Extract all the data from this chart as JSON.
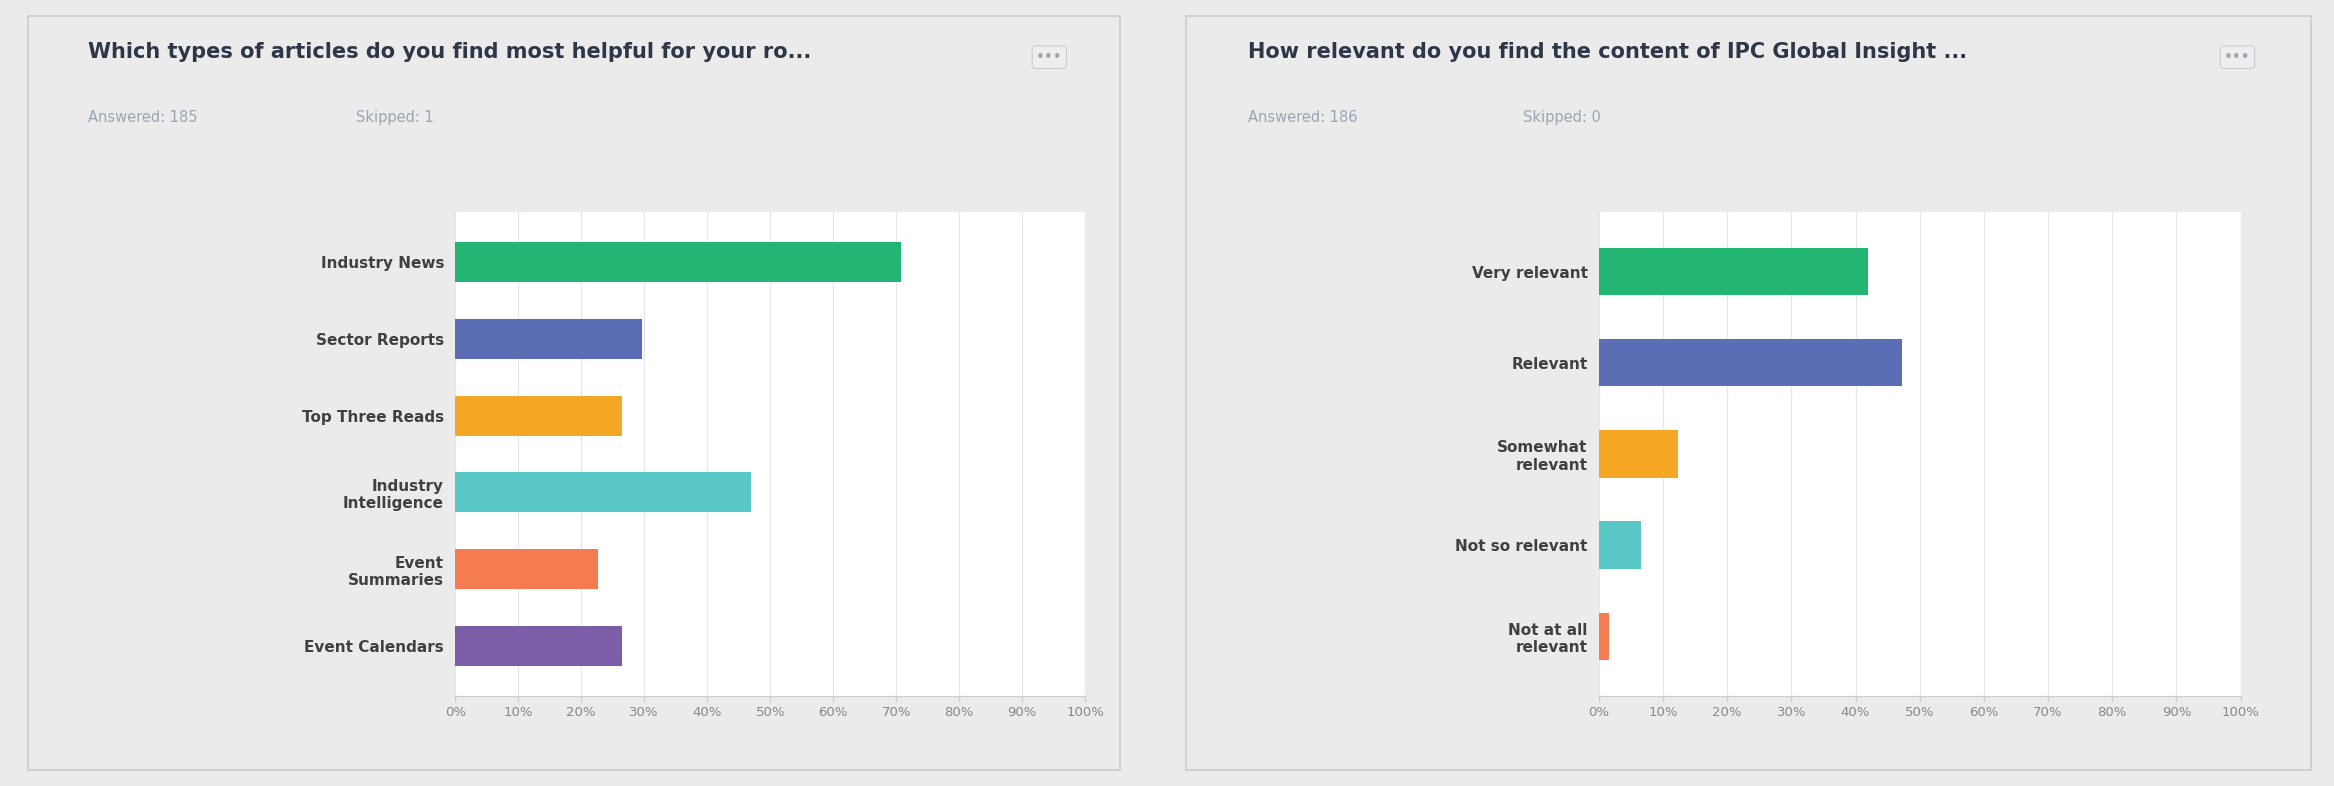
{
  "chart1": {
    "title": "Which types of articles do you find most helpful for your ro...",
    "answered": "Answered: 185",
    "skipped": "Skipped: 1",
    "categories": [
      "Industry News",
      "Sector Reports",
      "Top Three Reads",
      "Industry\nIntelligence",
      "Event\nSummaries",
      "Event Calendars"
    ],
    "values": [
      70.8,
      29.7,
      26.5,
      47.0,
      22.7,
      26.5
    ],
    "colors": [
      "#22b573",
      "#5b6eb5",
      "#f5a623",
      "#5bc8c8",
      "#f47c50",
      "#7b5ea7"
    ]
  },
  "chart2": {
    "title": "How relevant do you find the content of IPC Global Insight ...",
    "answered": "Answered: 186",
    "skipped": "Skipped: 0",
    "categories": [
      "Very relevant",
      "Relevant",
      "Somewhat\nrelevant",
      "Not so relevant",
      "Not at all\nrelevant"
    ],
    "values": [
      41.9,
      47.3,
      12.4,
      6.5,
      1.6
    ],
    "colors": [
      "#22b573",
      "#5b6eb5",
      "#f5a623",
      "#5bc8c8",
      "#f47c50"
    ]
  },
  "bg_color": "#ebebeb",
  "panel_color": "#ffffff",
  "title_color": "#2d3748",
  "label_color": "#404040",
  "answered_color": "#9aa5b4",
  "grid_color": "#e2e8f0",
  "dots_color": "#9aa5b4",
  "tick_label_color": "#888888",
  "title_fontsize": 15,
  "label_fontsize": 11,
  "answered_fontsize": 10.5,
  "tick_fontsize": 9.5
}
